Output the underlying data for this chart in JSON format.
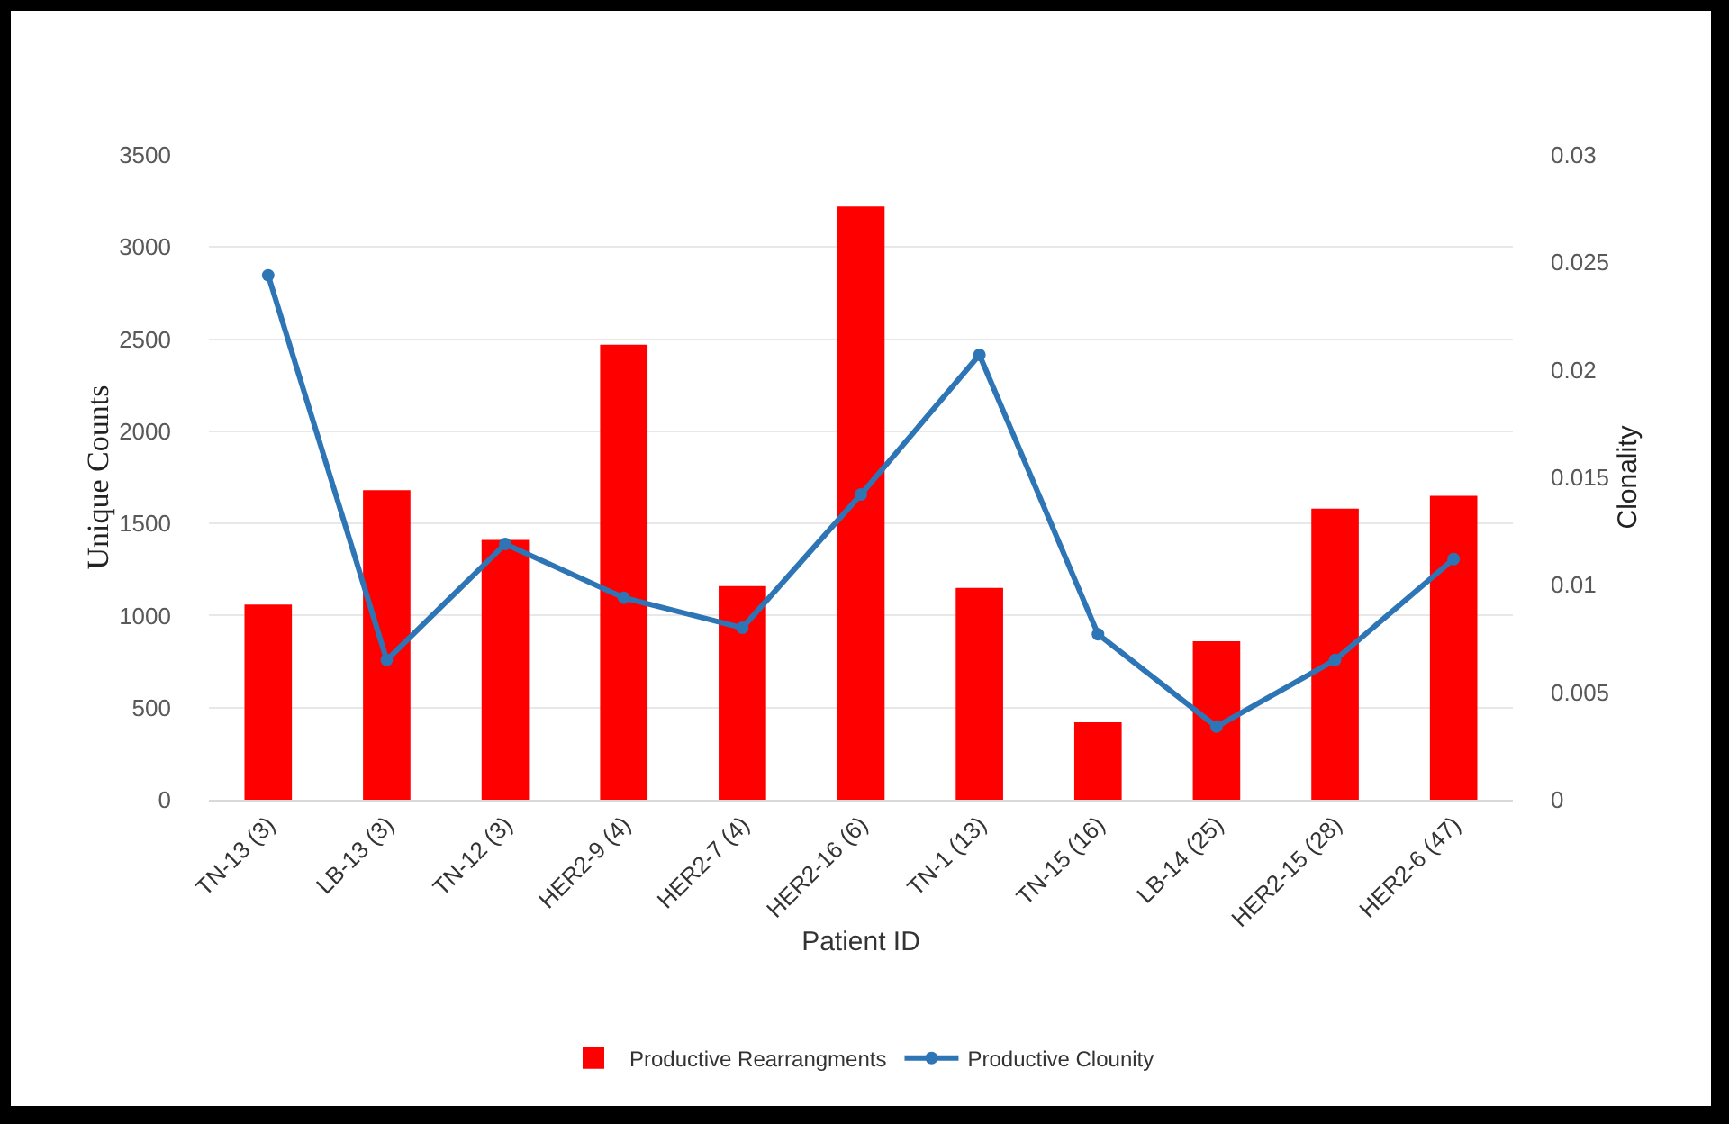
{
  "chart_data": {
    "type": "bar",
    "xlabel": "Patient ID",
    "ylabel": "Unique Counts",
    "y2label": "Clonality",
    "categories": [
      "TN-13 (3)",
      "LB-13 (3)",
      "TN-12 (3)",
      "HER2-9 (4)",
      "HER2-7 (4)",
      "HER2-16 (6)",
      "TN-1 (13)",
      "TN-15 (16)",
      "LB-14 (25)",
      "HER2-15 (28)",
      "HER2-6 (47)"
    ],
    "series": [
      {
        "name": "Productive Rearrangments",
        "color": "#ff0000",
        "values": [
          1060,
          1680,
          1410,
          2470,
          1160,
          3220,
          1150,
          420,
          860,
          1580,
          1650
        ]
      },
      {
        "name": "Productive Clounity",
        "type": "line",
        "axis": "y2",
        "color": "#2e75b6",
        "values": [
          0.0244,
          0.0065,
          0.0119,
          0.0094,
          0.008,
          0.0142,
          0.0207,
          0.0077,
          0.0034,
          0.0065,
          0.0112
        ]
      }
    ],
    "ylim": [
      0,
      3500
    ],
    "yticks": [
      0,
      500,
      1000,
      1500,
      2000,
      2500,
      3000,
      3500
    ],
    "y2lim": [
      0,
      0.03
    ],
    "y2ticks": [
      0,
      0.005,
      0.01,
      0.015,
      0.02,
      0.025,
      0.03
    ],
    "grid": "y",
    "legend": "bottom",
    "marker": "circle",
    "line_style": "solid"
  }
}
